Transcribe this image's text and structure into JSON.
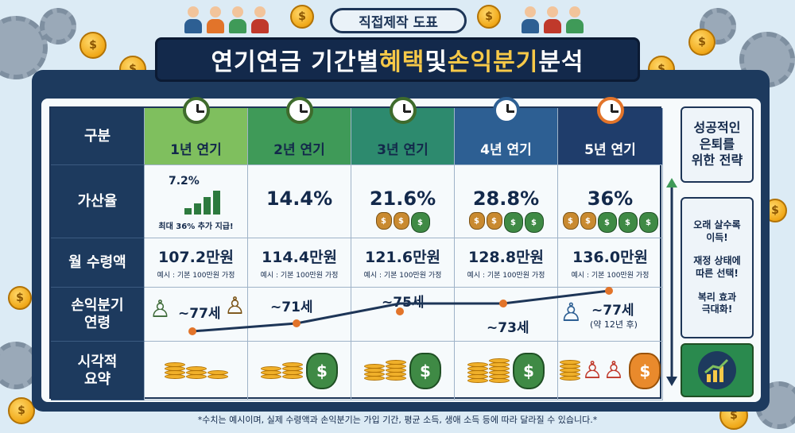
{
  "badge": "직접제작 도표",
  "title": {
    "part1": "연기연금 기간별 ",
    "highlight1": "혜택",
    "part2": " 및 ",
    "highlight2": "손익분기",
    "part3": " 분석"
  },
  "row_headers": [
    "구분",
    "가산율",
    "월 수령액",
    "손익분기\n연령",
    "시각적\n요약"
  ],
  "columns": [
    {
      "label": "1년 연기",
      "rate": "7.2%",
      "rate_note": "최대 36% 추가 지급!",
      "amount": "107.2만원",
      "example": "예시 : 기본 100만원 가정",
      "breakeven": "~77세",
      "breakeven_sub": ""
    },
    {
      "label": "2년 연기",
      "rate": "14.4%",
      "rate_note": "",
      "amount": "114.4만원",
      "example": "예시 : 기본 100만원 가정",
      "breakeven": "~71세",
      "breakeven_sub": ""
    },
    {
      "label": "3년 연기",
      "rate": "21.6%",
      "rate_note": "",
      "amount": "121.6만원",
      "example": "예시 : 기본 100만원 가정",
      "breakeven": "~75세",
      "breakeven_sub": ""
    },
    {
      "label": "4년 연기",
      "rate": "28.8%",
      "rate_note": "",
      "amount": "128.8만원",
      "example": "예시 : 기본 100만원 가정",
      "breakeven": "~73세",
      "breakeven_sub": ""
    },
    {
      "label": "5년 연기",
      "rate": "36%",
      "rate_note": "",
      "amount": "136.0만원",
      "example": "예시 : 기본 100만원 가정",
      "breakeven": "~77세",
      "breakeven_sub": "(약 12년 후)"
    }
  ],
  "sidebar": {
    "heading": "성공적인\n은퇴를\n위한 전략",
    "points": [
      "오래 살수록\n이득!",
      "재정 상태에\n따른 선택!",
      "복리 효과\n극대화!"
    ]
  },
  "footnote": "*수치는 예시이며, 실제 수령액과 손익분기는 가입 기간, 평균 소득, 생애 소득 등에 따라 달라질 수 있습니다.*",
  "icon_names": [
    "clock-icon",
    "money-bag-icon",
    "coin-icon",
    "gear-icon",
    "growth-chart-icon",
    "elderly-person-icon"
  ],
  "colors": {
    "navy": "#13294b",
    "gold": "#f7c948",
    "green": "#3f9a58",
    "orange": "#e2742a"
  }
}
